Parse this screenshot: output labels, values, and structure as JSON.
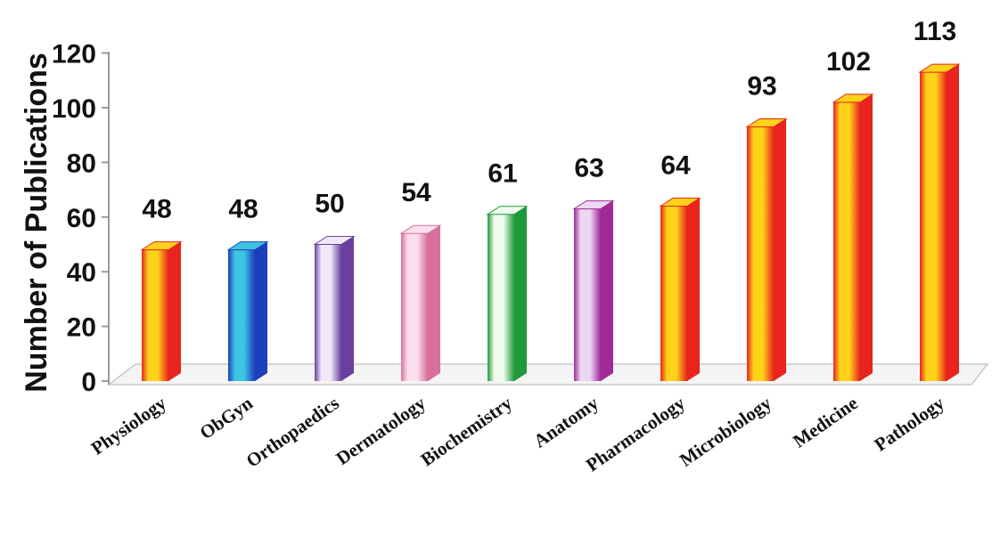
{
  "chart_data": {
    "type": "bar",
    "ylabel": "Number of Publications",
    "ylim": [
      0,
      120
    ],
    "yticks": [
      0,
      20,
      40,
      60,
      80,
      100,
      120
    ],
    "yticks_display": [
      "0",
      "20",
      "40",
      "60",
      "80",
      "100",
      "120"
    ],
    "categories": [
      "Physiology",
      "ObGyn",
      "Orthopaedics",
      "Dermatology",
      "Biochemistry",
      "Anatomy",
      "Pharmacology",
      "Microbiology",
      "Medicine",
      "Pathology"
    ],
    "values": [
      48,
      48,
      50,
      54,
      61,
      63,
      64,
      93,
      102,
      113
    ],
    "data_labels": [
      "48",
      "48",
      "50",
      "54",
      "61",
      "63",
      "64",
      "93",
      "102",
      "113"
    ],
    "bar_colors": [
      {
        "light": "#ffd21a",
        "dark": "#e8241c"
      },
      {
        "light": "#3cc4e0",
        "dark": "#1b3fbf"
      },
      {
        "light": "#ede9f7",
        "dark": "#6a3fa0"
      },
      {
        "light": "#fbe0ec",
        "dark": "#d8709a"
      },
      {
        "light": "#f1faef",
        "dark": "#1f9a3a"
      },
      {
        "light": "#ecd7ef",
        "dark": "#a02a98"
      },
      {
        "light": "#ffd21a",
        "dark": "#e8241c"
      },
      {
        "light": "#ffd21a",
        "dark": "#e8241c"
      },
      {
        "light": "#ffd21a",
        "dark": "#e8241c"
      },
      {
        "light": "#ffd21a",
        "dark": "#e8241c"
      }
    ],
    "grid": false,
    "legend": "none",
    "style": "3d-cylinder-bars"
  }
}
